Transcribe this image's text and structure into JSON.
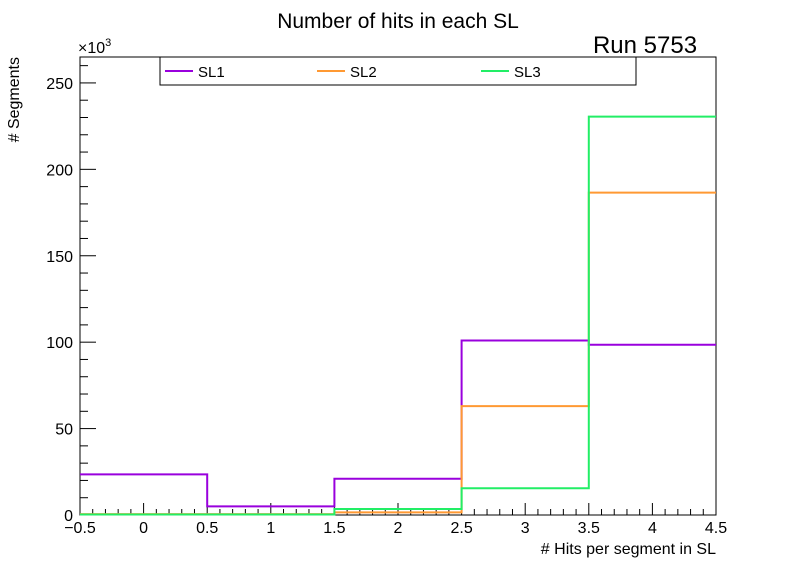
{
  "chart_data": {
    "type": "histogram-step",
    "title": "Number of hits in each SL",
    "annotation": "Run 5753",
    "xlabel": "# Hits per segment in SL",
    "ylabel": "# Segments",
    "y_multiplier": "×10",
    "y_multiplier_exp": "3",
    "xlim": [
      -0.5,
      4.5
    ],
    "ylim": [
      0,
      265
    ],
    "x_ticks": [
      -0.5,
      0,
      0.5,
      1,
      1.5,
      2,
      2.5,
      3,
      3.5,
      4,
      4.5
    ],
    "x_tick_labels": [
      "−0.5",
      "0",
      "0.5",
      "1",
      "1.5",
      "2",
      "2.5",
      "3",
      "3.5",
      "4",
      "4.5"
    ],
    "y_ticks": [
      0,
      50,
      100,
      150,
      200,
      250
    ],
    "y_tick_labels": [
      "0",
      "50",
      "100",
      "150",
      "200",
      "250"
    ],
    "bin_edges": [
      -0.5,
      0.5,
      1.5,
      2.5,
      3.5,
      4.5
    ],
    "legend_position": "top",
    "series": [
      {
        "name": "SL1",
        "color": "#9900dd",
        "values": [
          23.5,
          5,
          21,
          101,
          98.5
        ]
      },
      {
        "name": "SL2",
        "color": "#ff9933",
        "values": [
          0.5,
          0.5,
          1.5,
          63,
          186.5
        ]
      },
      {
        "name": "SL3",
        "color": "#22ee66",
        "values": [
          0.3,
          0.3,
          3.5,
          15.5,
          230.5
        ]
      }
    ]
  }
}
